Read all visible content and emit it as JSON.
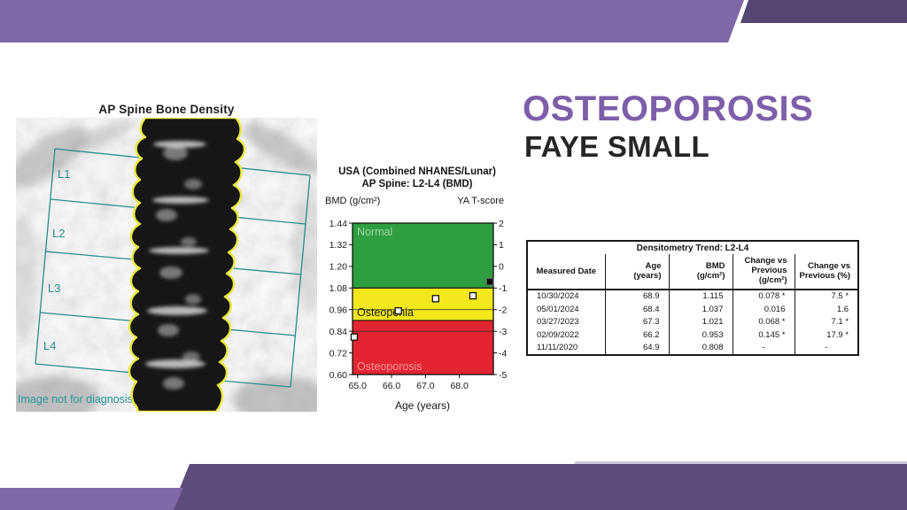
{
  "slide": {
    "title": "OSTEOPOROSIS",
    "subtitle": "FAYE SMALL",
    "background": "#ffffff",
    "accent_colors": {
      "banner_light": "#8067a5",
      "banner_dark_top": "#564673",
      "banner_dark_bottom": "#5e4c7d",
      "title_purple": "#7c5ea9"
    }
  },
  "xray": {
    "title": "AP Spine Bone Density",
    "region_labels": [
      "L1",
      "L2",
      "L3",
      "L4"
    ],
    "watermark": "Image not for diagnosis"
  },
  "chart_data": {
    "type": "scatter",
    "title_line1": "USA (Combined NHANES/Lunar)",
    "title_line2": "AP Spine: L2-L4 (BMD)",
    "left_axis_label": "BMD (g/cm²)",
    "right_axis_label": "YA T-score",
    "xlabel": "Age (years)",
    "xlim": [
      64.85,
      69.0
    ],
    "ylim": [
      0.6,
      1.44
    ],
    "x_ticks": [
      65.0,
      66.0,
      67.0,
      68.0
    ],
    "x_tick_labels": [
      "65.0",
      "66.0",
      "67.0",
      "68.0"
    ],
    "bmd_ticks": [
      1.44,
      1.32,
      1.2,
      1.08,
      0.96,
      0.84,
      0.72,
      0.6
    ],
    "bmd_tick_labels": [
      "1.44",
      "1.32",
      "1.20",
      "1.08",
      "0.96",
      "0.84",
      "0.72",
      "0.60"
    ],
    "tscore_ticks": [
      2,
      1,
      0,
      -1,
      -2,
      -3,
      -4,
      -5
    ],
    "tscore_tick_labels": [
      "2",
      "1",
      "0",
      "-1",
      "-2",
      "-3",
      "-4",
      "-5"
    ],
    "zones": [
      {
        "label": "Normal",
        "from": 1.08,
        "to": 1.44,
        "color": "#2f9e41",
        "label_at": "top",
        "label_color": "rgba(255,255,255,0.55)"
      },
      {
        "label": "Osteopenia",
        "from": 0.9,
        "to": 1.08,
        "color": "#f2e81c",
        "label_at": "bottom",
        "label_color": "#1c1c1c"
      },
      {
        "label": "Osteoporosis",
        "from": 0.6,
        "to": 0.9,
        "color": "#e22531",
        "label_at": "bottom",
        "label_color": "rgba(255,255,255,0.5)"
      }
    ],
    "inner_gridlines_bmd": [
      0.96,
      0.84
    ],
    "points": [
      {
        "age": 64.9,
        "bmd": 0.808,
        "filled": false
      },
      {
        "age": 66.2,
        "bmd": 0.953,
        "filled": false
      },
      {
        "age": 67.3,
        "bmd": 1.021,
        "filled": false
      },
      {
        "age": 68.4,
        "bmd": 1.037,
        "filled": false
      },
      {
        "age": 68.9,
        "bmd": 1.115,
        "filled": true
      }
    ]
  },
  "table": {
    "title": "Densitometry Trend: L2-L4",
    "headers": [
      [
        "Measured Date"
      ],
      [
        "Age",
        "(years)"
      ],
      [
        "BMD",
        "(g/cm²)"
      ],
      [
        "Change vs",
        "Previous",
        "(g/cm²)"
      ],
      [
        "Change vs",
        "Previous (%)"
      ]
    ],
    "rows": [
      [
        "10/30/2024",
        "68.9",
        "1.115",
        "0.078 *",
        "7.5 *"
      ],
      [
        "05/01/2024",
        "68.4",
        "1.037",
        "0.016",
        "1.6"
      ],
      [
        "03/27/2023",
        "67.3",
        "1.021",
        "0.068 *",
        "7.1 *"
      ],
      [
        "02/09/2022",
        "66.2",
        "0.953",
        "0.145 *",
        "17.9 *"
      ],
      [
        "11/11/2020",
        "64.9",
        "0.808",
        "-",
        "-"
      ]
    ]
  }
}
